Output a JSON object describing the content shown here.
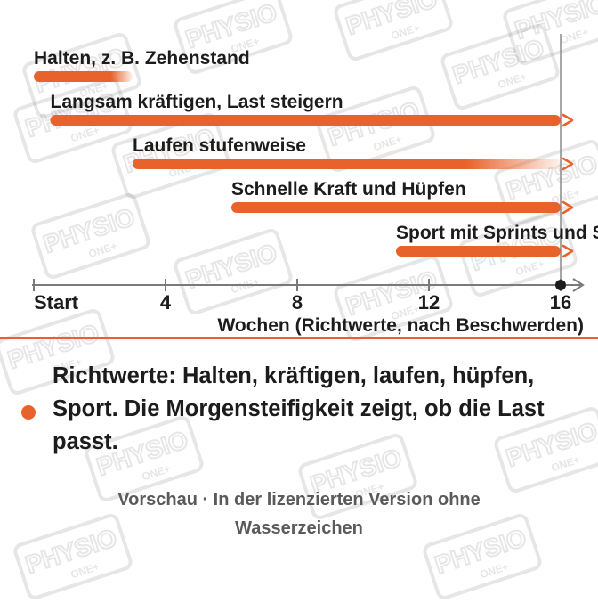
{
  "watermark": {
    "brand": "PHYSIO",
    "sub": "ONE+"
  },
  "chart_data": {
    "type": "bar",
    "subtype": "timeline-ranges",
    "xlabel": "Wochen (Richtwerte, nach Beschwerden)",
    "xlim": [
      0,
      16
    ],
    "x_ticks": [
      {
        "value": 0,
        "label": "Start"
      },
      {
        "value": 4,
        "label": "4"
      },
      {
        "value": 8,
        "label": "8"
      },
      {
        "value": 12,
        "label": "12"
      },
      {
        "value": 16,
        "label": "16"
      }
    ],
    "series": [
      {
        "label": "Halten, z. B. Zehenstand",
        "start": 0,
        "end": 3,
        "fade_end": true,
        "continues": false
      },
      {
        "label": "Langsam kräftigen, Last steigern",
        "start": 0.5,
        "end": 16,
        "fade_end": false,
        "continues": true
      },
      {
        "label": "Laufen stufenweise",
        "start": 3,
        "end": 16,
        "fade_end": true,
        "continues": true
      },
      {
        "label": "Schnelle Kraft und Hüpfen",
        "start": 6,
        "end": 16,
        "fade_end": false,
        "continues": true
      },
      {
        "label": "Sport mit Sprints und Sprüngen",
        "start": 11,
        "end": 16,
        "fade_end": false,
        "continues": true
      }
    ],
    "marker_line": 16,
    "colors": {
      "bar": "#e8632b",
      "axis": "#7a7a7a",
      "marker": "#1c1c1c"
    }
  },
  "takeaway": {
    "text": "Richtwerte: Halten, kräftigen, laufen, hüpfen, Sport. Die Morgensteifigkeit zeigt, ob die Last passt."
  },
  "footer": {
    "line1": "Vorschau · In der lizenzierten Version ohne",
    "line2": "Wasserzeichen"
  }
}
